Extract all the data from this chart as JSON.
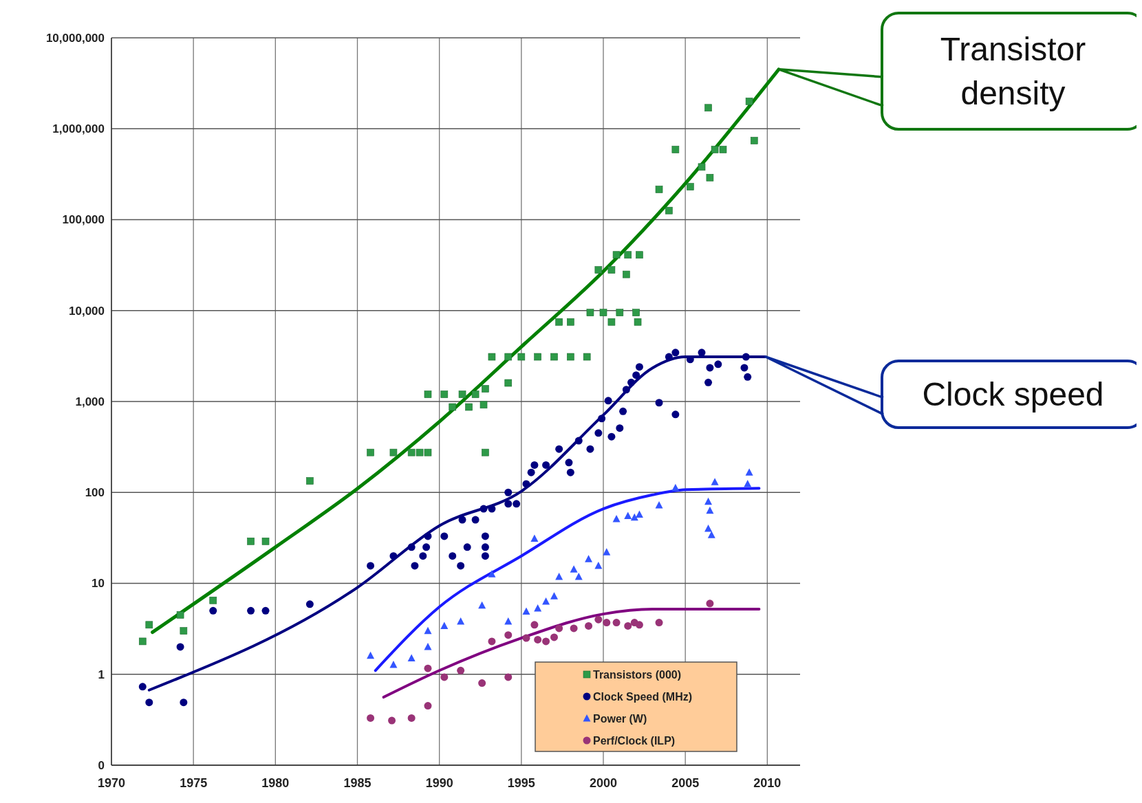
{
  "chart_data": {
    "type": "scatter",
    "log": "y",
    "grid": true,
    "legend": "bottom right",
    "xlim": [
      1970,
      2012
    ],
    "xticks": [
      1970,
      1975,
      1980,
      1985,
      1990,
      1995,
      2000,
      2005,
      2010
    ],
    "ylim": [
      0.1,
      10000000
    ],
    "yticks": [
      {
        "value": 0.1,
        "label": "0"
      },
      {
        "value": 1,
        "label": "1"
      },
      {
        "value": 10,
        "label": "10"
      },
      {
        "value": 100,
        "label": "100"
      },
      {
        "value": 1000,
        "label": "1,000"
      },
      {
        "value": 10000,
        "label": "10,000"
      },
      {
        "value": 100000,
        "label": "100,000"
      },
      {
        "value": 1000000,
        "label": "1,000,000"
      },
      {
        "value": 10000000,
        "label": "10,000,000"
      }
    ],
    "annotations": [
      "Transistor density",
      "Clock speed"
    ],
    "series": [
      {
        "name": "Transistors (000)",
        "marker": "square",
        "color": "#2e9a48",
        "x": [
          1971.9,
          1972.3,
          1974.2,
          1974.4,
          1976.2,
          1978.5,
          1979.4,
          1982.1,
          1985.8,
          1987.2,
          1988.3,
          1988.8,
          1989.3,
          1989.3,
          1990.3,
          1990.8,
          1991.4,
          1991.8,
          1992.2,
          1992.7,
          1992.8,
          1992.8,
          1993.2,
          1994.2,
          1994.2,
          1995,
          1996,
          1997,
          1998,
          1999,
          1997.3,
          1998,
          1999.2,
          2000,
          2000.5,
          2001,
          2002,
          2002.1,
          1999.7,
          2000.5,
          2000.8,
          2001.4,
          2001.5,
          2002.2,
          2003.4,
          2004,
          2004.4,
          2005.3,
          2006,
          2006.4,
          2006.5,
          2006.8,
          2007.3,
          2008.9,
          2009.2
        ],
        "values": [
          2.3,
          3.5,
          4.5,
          3,
          6.5,
          29,
          29,
          134,
          275,
          275,
          275,
          275,
          275,
          1200,
          1200,
          870,
          1200,
          870,
          1200,
          920,
          1380,
          275,
          3100,
          3100,
          1600,
          3100,
          3100,
          3100,
          3100,
          3100,
          7500,
          7500,
          9500,
          9500,
          7500,
          9500,
          9500,
          7500,
          28000,
          28000,
          41000,
          25000,
          41000,
          41000,
          215000,
          126000,
          590000,
          230000,
          380000,
          1700000,
          290000,
          590000,
          590000,
          2000000,
          740000
        ]
      },
      {
        "name": "Clock Speed (MHz)",
        "marker": "circle",
        "color": "#000080",
        "x": [
          1971.9,
          1972.3,
          1974.2,
          1974.4,
          1976.2,
          1978.5,
          1979.4,
          1982.1,
          1985.8,
          1987.2,
          1988.3,
          1988.5,
          1989,
          1989.2,
          1989.3,
          1990.3,
          1990.8,
          1991.3,
          1991.4,
          1991.7,
          1992.2,
          1992.7,
          1992.8,
          1992.8,
          1992.8,
          1993.2,
          1994.2,
          1994.2,
          1994.7,
          1995.3,
          1995.6,
          1995.8,
          1996.5,
          1997.3,
          1997.9,
          1998,
          1998.5,
          1999.2,
          1999.7,
          1999.9,
          2000.3,
          2000.5,
          2001,
          2001.2,
          2001.4,
          2001.7,
          2002,
          2002.2,
          2003.4,
          2004.4,
          2004,
          2004.4,
          2005.3,
          2006,
          2006.4,
          2006.5,
          2007,
          2008.7,
          2008.8,
          2008.6
        ],
        "values": [
          0.73,
          0.49,
          2,
          0.49,
          5,
          5,
          5,
          5.9,
          15.6,
          20,
          25,
          15.6,
          20,
          25,
          33,
          33,
          20,
          15.6,
          50,
          25,
          50,
          66,
          33,
          25,
          20,
          66,
          100,
          75,
          75,
          124,
          166,
          200,
          200,
          300,
          213,
          166,
          370,
          300,
          450,
          650,
          1020,
          410,
          510,
          780,
          1350,
          1620,
          1950,
          2400,
          970,
          720,
          3100,
          3450,
          2900,
          3450,
          1620,
          2350,
          2570,
          3100,
          1860,
          2350
        ]
      },
      {
        "name": "Power (W)",
        "marker": "triangle",
        "color": "#3355ff",
        "x": [
          1985.8,
          1987.2,
          1988.3,
          1989.3,
          1989.3,
          1990.3,
          1991.3,
          1992.6,
          1993.2,
          1994.2,
          1995.3,
          1995.8,
          1996,
          1996.5,
          1997,
          1997.3,
          1998.2,
          1998.5,
          1999.1,
          1999.7,
          2000.2,
          2000.8,
          2001.5,
          2001.9,
          2002.2,
          2003.4,
          2004.4,
          2006.4,
          2006.5,
          2006.4,
          2006.6,
          2006.8,
          2008.9,
          2008.8
        ],
        "values": [
          1.6,
          1.27,
          1.5,
          2,
          3,
          3.4,
          3.8,
          5.7,
          12.6,
          3.8,
          4.9,
          31,
          5.3,
          6.3,
          7.2,
          11.8,
          14.2,
          11.8,
          18.5,
          15.6,
          22,
          51,
          55,
          53,
          57,
          72,
          112,
          79,
          63,
          40,
          34,
          130,
          166,
          124
        ]
      },
      {
        "name": "Perf/Clock (ILP)",
        "marker": "circle",
        "color": "#993377",
        "x": [
          1985.8,
          1987.1,
          1988.3,
          1989.3,
          1989.3,
          1990.3,
          1991.3,
          1992.6,
          1993.2,
          1994.2,
          1994.2,
          1995.3,
          1995.8,
          1996,
          1996.5,
          1997,
          1997.3,
          1998.2,
          1999.1,
          1999.7,
          2000.2,
          2000.8,
          2001.5,
          2001.9,
          2002.2,
          2003.4,
          2006.5
        ],
        "values": [
          0.33,
          0.31,
          0.33,
          0.45,
          1.16,
          0.93,
          1.1,
          0.8,
          2.3,
          0.93,
          2.7,
          2.5,
          3.5,
          2.4,
          2.3,
          2.55,
          3.2,
          3.2,
          3.4,
          4,
          3.7,
          3.7,
          3.4,
          3.7,
          3.5,
          3.7,
          6
        ]
      },
      {
        "type": "line",
        "marker": "none",
        "color": "#008000",
        "x": [
          1972.5,
          1980,
          1985,
          1990,
          1995,
          2000,
          2005,
          2010.7
        ],
        "values": [
          2.9,
          25,
          110,
          600,
          4000,
          27000,
          250000,
          4500000
        ]
      },
      {
        "type": "line",
        "marker": "none",
        "color": "#000080",
        "x": [
          1972.3,
          1985,
          1990,
          1995,
          2000,
          2003,
          2005,
          2009.9
        ],
        "values": [
          0.67,
          9,
          43,
          103,
          710,
          2340,
          3100,
          3100
        ]
      },
      {
        "type": "line",
        "marker": "none",
        "color": "#1a1aff",
        "x": [
          1986.1,
          1990,
          1995,
          2000,
          2003,
          2005,
          2009.5
        ],
        "values": [
          1.1,
          5.5,
          20,
          66,
          94,
          107,
          111
        ]
      },
      {
        "type": "line",
        "marker": "none",
        "color": "#800080",
        "x": [
          1986.6,
          1990,
          1995,
          2000,
          2003,
          2009.5
        ],
        "values": [
          0.56,
          1.1,
          2.5,
          4.6,
          5.2,
          5.2
        ]
      }
    ]
  }
}
